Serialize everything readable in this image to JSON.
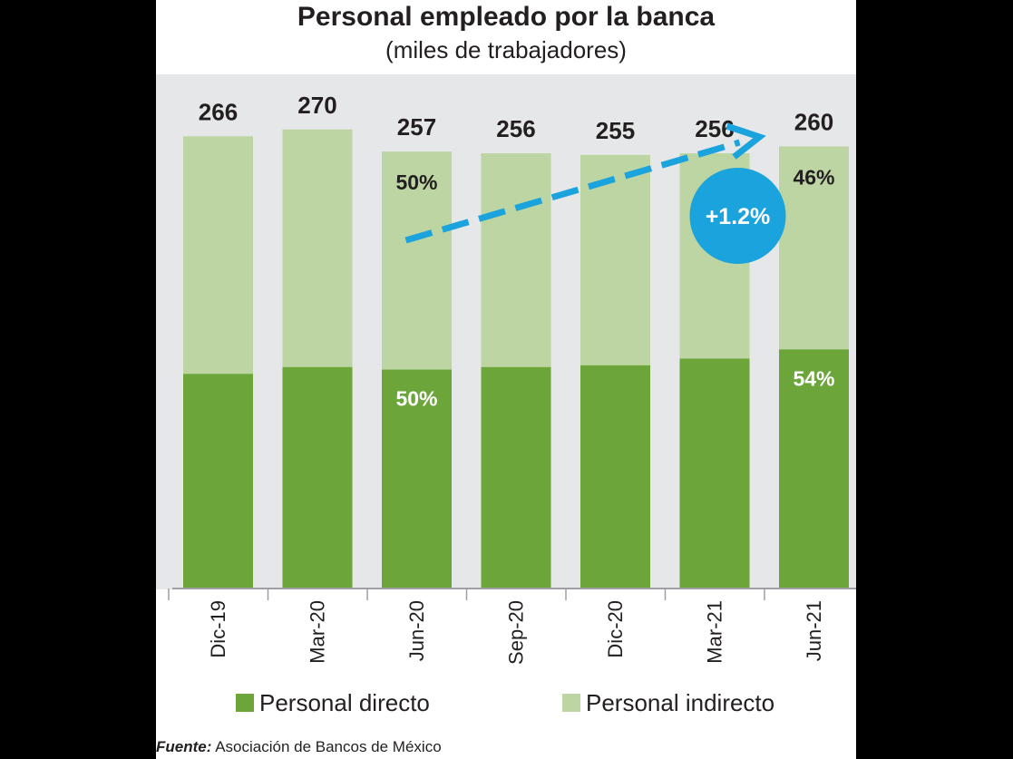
{
  "chart_data": {
    "type": "bar",
    "stacked": true,
    "title": "Personal empleado por la banca",
    "subtitle": "(miles de trabajadores)",
    "categories": [
      "Dic-19",
      "Mar-20",
      "Jun-20",
      "Sep-20",
      "Dic-20",
      "Mar-21",
      "Jun-21"
    ],
    "totals": [
      266,
      270,
      257,
      256,
      255,
      256,
      260
    ],
    "series": [
      {
        "name": "Personal directo",
        "color": "#6ca63a",
        "values": [
          126,
          130,
          128.5,
          130,
          131,
          135,
          140.4
        ]
      },
      {
        "name": "Personal indirecto",
        "color": "#bcd5a3",
        "values": [
          140,
          140,
          128.5,
          126,
          124,
          121,
          119.6
        ]
      }
    ],
    "share_labels": [
      {
        "category": "Jun-20",
        "series": "Personal indirecto",
        "text": "50%"
      },
      {
        "category": "Jun-20",
        "series": "Personal directo",
        "text": "50%"
      },
      {
        "category": "Jun-21",
        "series": "Personal indirecto",
        "text": "46%"
      },
      {
        "category": "Jun-21",
        "series": "Personal directo",
        "text": "54%"
      }
    ],
    "annotation": {
      "text": "+1.2%",
      "from": "Jun-20",
      "to": "Jun-21",
      "color": "#1aa3dc"
    },
    "ylim": [
      0,
      300
    ],
    "grid": false,
    "legend": "bottom"
  },
  "source": {
    "label": "Fuente:",
    "text": "Asociación de Bancos de México"
  }
}
